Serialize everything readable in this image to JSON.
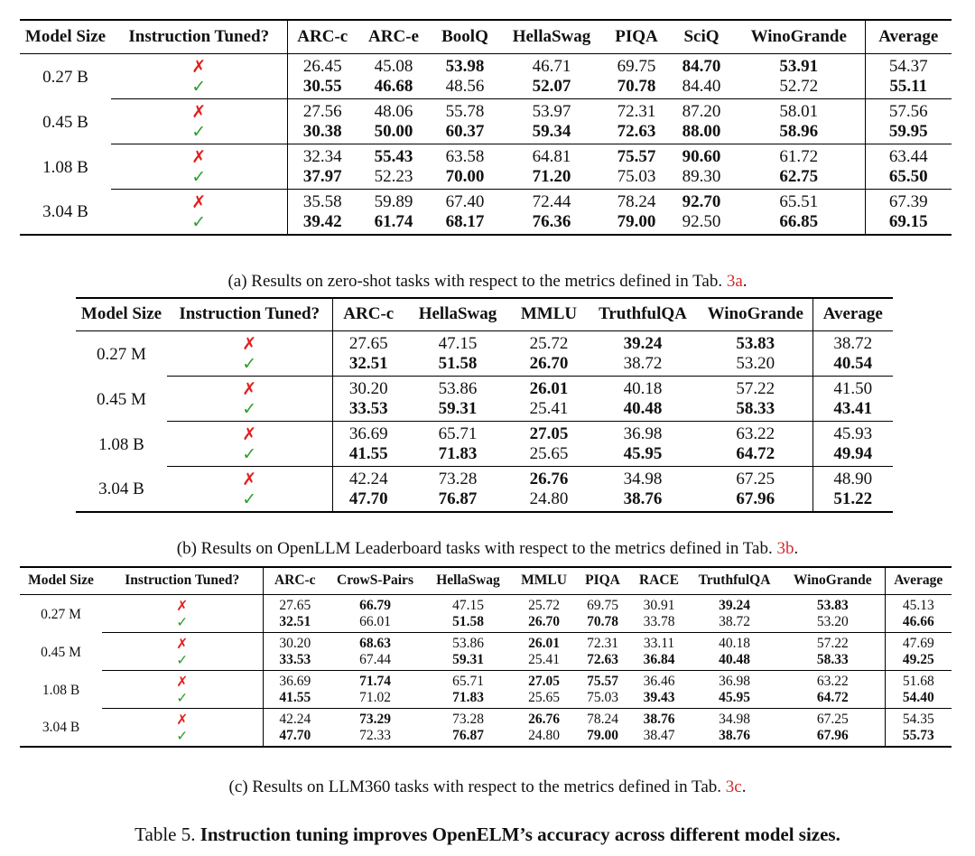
{
  "tables": [
    {
      "headers": [
        "Model Size",
        "Instruction Tuned?",
        "ARC-c",
        "ARC-e",
        "BoolQ",
        "HellaSwag",
        "PIQA",
        "SciQ",
        "WinoGrande",
        "Average"
      ],
      "groups": [
        {
          "size": "0.27 B",
          "rows": [
            {
              "tuned": "✗",
              "values": [
                "26.45",
                "45.08",
                "53.98",
                "46.71",
                "69.75",
                "84.70",
                "53.91",
                "54.37"
              ],
              "bold": [
                false,
                false,
                true,
                false,
                false,
                true,
                true,
                false
              ]
            },
            {
              "tuned": "✓",
              "values": [
                "30.55",
                "46.68",
                "48.56",
                "52.07",
                "70.78",
                "84.40",
                "52.72",
                "55.11"
              ],
              "bold": [
                true,
                true,
                false,
                true,
                true,
                false,
                false,
                true
              ]
            }
          ]
        },
        {
          "size": "0.45 B",
          "rows": [
            {
              "tuned": "✗",
              "values": [
                "27.56",
                "48.06",
                "55.78",
                "53.97",
                "72.31",
                "87.20",
                "58.01",
                "57.56"
              ],
              "bold": [
                false,
                false,
                false,
                false,
                false,
                false,
                false,
                false
              ]
            },
            {
              "tuned": "✓",
              "values": [
                "30.38",
                "50.00",
                "60.37",
                "59.34",
                "72.63",
                "88.00",
                "58.96",
                "59.95"
              ],
              "bold": [
                true,
                true,
                true,
                true,
                true,
                true,
                true,
                true
              ]
            }
          ]
        },
        {
          "size": "1.08 B",
          "rows": [
            {
              "tuned": "✗",
              "values": [
                "32.34",
                "55.43",
                "63.58",
                "64.81",
                "75.57",
                "90.60",
                "61.72",
                "63.44"
              ],
              "bold": [
                false,
                true,
                false,
                false,
                true,
                true,
                false,
                false
              ]
            },
            {
              "tuned": "✓",
              "values": [
                "37.97",
                "52.23",
                "70.00",
                "71.20",
                "75.03",
                "89.30",
                "62.75",
                "65.50"
              ],
              "bold": [
                true,
                false,
                true,
                true,
                false,
                false,
                true,
                true
              ]
            }
          ]
        },
        {
          "size": "3.04 B",
          "rows": [
            {
              "tuned": "✗",
              "values": [
                "35.58",
                "59.89",
                "67.40",
                "72.44",
                "78.24",
                "92.70",
                "65.51",
                "67.39"
              ],
              "bold": [
                false,
                false,
                false,
                false,
                false,
                true,
                false,
                false
              ]
            },
            {
              "tuned": "✓",
              "values": [
                "39.42",
                "61.74",
                "68.17",
                "76.36",
                "79.00",
                "92.50",
                "66.85",
                "69.15"
              ],
              "bold": [
                true,
                true,
                true,
                true,
                true,
                false,
                true,
                true
              ]
            }
          ]
        }
      ],
      "caption": {
        "text": "(a) Results on zero-shot tasks with respect to the metrics defined in Tab. ",
        "ref": "3a",
        "end": "."
      }
    },
    {
      "headers": [
        "Model Size",
        "Instruction Tuned?",
        "ARC-c",
        "HellaSwag",
        "MMLU",
        "TruthfulQA",
        "WinoGrande",
        "Average"
      ],
      "groups": [
        {
          "size": "0.27 M",
          "rows": [
            {
              "tuned": "✗",
              "values": [
                "27.65",
                "47.15",
                "25.72",
                "39.24",
                "53.83",
                "38.72"
              ],
              "bold": [
                false,
                false,
                false,
                true,
                true,
                false
              ]
            },
            {
              "tuned": "✓",
              "values": [
                "32.51",
                "51.58",
                "26.70",
                "38.72",
                "53.20",
                "40.54"
              ],
              "bold": [
                true,
                true,
                true,
                false,
                false,
                true
              ]
            }
          ]
        },
        {
          "size": "0.45 M",
          "rows": [
            {
              "tuned": "✗",
              "values": [
                "30.20",
                "53.86",
                "26.01",
                "40.18",
                "57.22",
                "41.50"
              ],
              "bold": [
                false,
                false,
                true,
                false,
                false,
                false
              ]
            },
            {
              "tuned": "✓",
              "values": [
                "33.53",
                "59.31",
                "25.41",
                "40.48",
                "58.33",
                "43.41"
              ],
              "bold": [
                true,
                true,
                false,
                true,
                true,
                true
              ]
            }
          ]
        },
        {
          "size": "1.08 B",
          "rows": [
            {
              "tuned": "✗",
              "values": [
                "36.69",
                "65.71",
                "27.05",
                "36.98",
                "63.22",
                "45.93"
              ],
              "bold": [
                false,
                false,
                true,
                false,
                false,
                false
              ]
            },
            {
              "tuned": "✓",
              "values": [
                "41.55",
                "71.83",
                "25.65",
                "45.95",
                "64.72",
                "49.94"
              ],
              "bold": [
                true,
                true,
                false,
                true,
                true,
                true
              ]
            }
          ]
        },
        {
          "size": "3.04 B",
          "rows": [
            {
              "tuned": "✗",
              "values": [
                "42.24",
                "73.28",
                "26.76",
                "34.98",
                "67.25",
                "48.90"
              ],
              "bold": [
                false,
                false,
                true,
                false,
                false,
                false
              ]
            },
            {
              "tuned": "✓",
              "values": [
                "47.70",
                "76.87",
                "24.80",
                "38.76",
                "67.96",
                "51.22"
              ],
              "bold": [
                true,
                true,
                false,
                true,
                true,
                true
              ]
            }
          ]
        }
      ],
      "caption": {
        "text": "(b) Results on OpenLLM Leaderboard tasks with respect to the metrics defined in Tab. ",
        "ref": "3b",
        "end": "."
      }
    },
    {
      "headers": [
        "Model Size",
        "Instruction Tuned?",
        "ARC-c",
        "CrowS-Pairs",
        "HellaSwag",
        "MMLU",
        "PIQA",
        "RACE",
        "TruthfulQA",
        "WinoGrande",
        "Average"
      ],
      "groups": [
        {
          "size": "0.27 M",
          "rows": [
            {
              "tuned": "✗",
              "values": [
                "27.65",
                "66.79",
                "47.15",
                "25.72",
                "69.75",
                "30.91",
                "39.24",
                "53.83",
                "45.13"
              ],
              "bold": [
                false,
                true,
                false,
                false,
                false,
                false,
                true,
                true,
                false
              ]
            },
            {
              "tuned": "✓",
              "values": [
                "32.51",
                "66.01",
                "51.58",
                "26.70",
                "70.78",
                "33.78",
                "38.72",
                "53.20",
                "46.66"
              ],
              "bold": [
                true,
                false,
                true,
                true,
                true,
                false,
                false,
                false,
                true
              ]
            }
          ]
        },
        {
          "size": "0.45 M",
          "rows": [
            {
              "tuned": "✗",
              "values": [
                "30.20",
                "68.63",
                "53.86",
                "26.01",
                "72.31",
                "33.11",
                "40.18",
                "57.22",
                "47.69"
              ],
              "bold": [
                false,
                true,
                false,
                true,
                false,
                false,
                false,
                false,
                false
              ]
            },
            {
              "tuned": "✓",
              "values": [
                "33.53",
                "67.44",
                "59.31",
                "25.41",
                "72.63",
                "36.84",
                "40.48",
                "58.33",
                "49.25"
              ],
              "bold": [
                true,
                false,
                true,
                false,
                true,
                true,
                true,
                true,
                true
              ]
            }
          ]
        },
        {
          "size": "1.08 B",
          "rows": [
            {
              "tuned": "✗",
              "values": [
                "36.69",
                "71.74",
                "65.71",
                "27.05",
                "75.57",
                "36.46",
                "36.98",
                "63.22",
                "51.68"
              ],
              "bold": [
                false,
                true,
                false,
                true,
                true,
                false,
                false,
                false,
                false
              ]
            },
            {
              "tuned": "✓",
              "values": [
                "41.55",
                "71.02",
                "71.83",
                "25.65",
                "75.03",
                "39.43",
                "45.95",
                "64.72",
                "54.40"
              ],
              "bold": [
                true,
                false,
                true,
                false,
                false,
                true,
                true,
                true,
                true
              ]
            }
          ]
        },
        {
          "size": "3.04 B",
          "rows": [
            {
              "tuned": "✗",
              "values": [
                "42.24",
                "73.29",
                "73.28",
                "26.76",
                "78.24",
                "38.76",
                "34.98",
                "67.25",
                "54.35"
              ],
              "bold": [
                false,
                true,
                false,
                true,
                false,
                true,
                false,
                false,
                false
              ]
            },
            {
              "tuned": "✓",
              "values": [
                "47.70",
                "72.33",
                "76.87",
                "24.80",
                "79.00",
                "38.47",
                "38.76",
                "67.96",
                "55.73"
              ],
              "bold": [
                true,
                false,
                true,
                false,
                true,
                false,
                true,
                true,
                true
              ]
            }
          ]
        }
      ],
      "caption": {
        "text": "(c) Results on LLM360 tasks with respect to the metrics defined in Tab. ",
        "ref": "3c",
        "end": "."
      }
    }
  ],
  "table_caption": {
    "prefix": "Table 5. ",
    "bold": "Instruction tuning improves OpenELM’s accuracy across different model sizes."
  }
}
